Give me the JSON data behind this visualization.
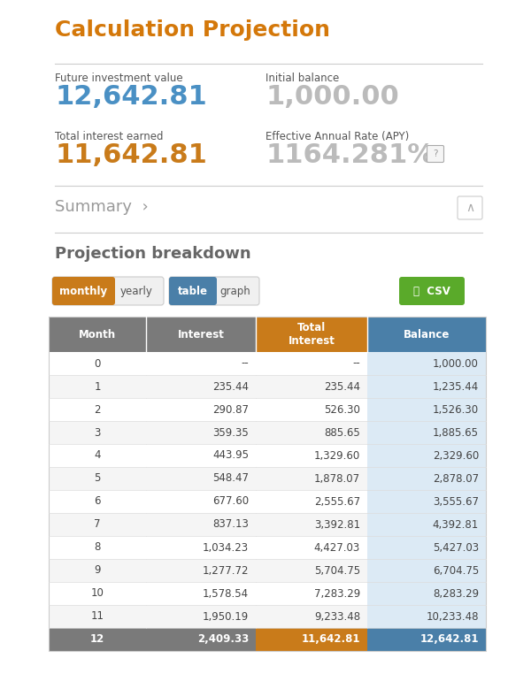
{
  "title": "Calculation Projection",
  "title_color": "#d4780a",
  "metric_label_color": "#555555",
  "metric_label_fontsize": 8.5,
  "metrics_left": [
    {
      "label": "Future investment value",
      "value": "12,642.81",
      "value_color": "#4a90c4"
    },
    {
      "label": "Total interest earned",
      "value": "11,642.81",
      "value_color": "#c97b1a"
    }
  ],
  "metrics_right": [
    {
      "label": "Initial balance",
      "value": "1,000.00",
      "value_color": "#bbbbbb"
    },
    {
      "label": "Effective Annual Rate (APY)",
      "value": "1164.281%",
      "value_color": "#bbbbbb"
    }
  ],
  "summary_text": "Summary  ›",
  "projection_text": "Projection breakdown",
  "buttons_group1": [
    {
      "label": "monthly",
      "bg": "#c97b1a",
      "fg": "#ffffff"
    },
    {
      "label": "yearly",
      "bg": "#f0f0f0",
      "fg": "#555555"
    }
  ],
  "buttons_group2": [
    {
      "label": "table",
      "bg": "#4a7fa8",
      "fg": "#ffffff"
    },
    {
      "label": "graph",
      "bg": "#f0f0f0",
      "fg": "#555555"
    }
  ],
  "csv_label": "⤓  CSV",
  "csv_bg": "#5aaa2a",
  "csv_fg": "#ffffff",
  "table_headers": [
    "Month",
    "Interest",
    "Total\nInterest",
    "Balance"
  ],
  "header_colors": [
    "#7a7a7a",
    "#7a7a7a",
    "#c97b1a",
    "#4a7fa8"
  ],
  "last_row_colors": [
    "#7a7a7a",
    "#7a7a7a",
    "#c97b1a",
    "#4a7fa8"
  ],
  "table_data": [
    [
      "0",
      "--",
      "--",
      "1,000.00"
    ],
    [
      "1",
      "235.44",
      "235.44",
      "1,235.44"
    ],
    [
      "2",
      "290.87",
      "526.30",
      "1,526.30"
    ],
    [
      "3",
      "359.35",
      "885.65",
      "1,885.65"
    ],
    [
      "4",
      "443.95",
      "1,329.60",
      "2,329.60"
    ],
    [
      "5",
      "548.47",
      "1,878.07",
      "2,878.07"
    ],
    [
      "6",
      "677.60",
      "2,555.67",
      "3,555.67"
    ],
    [
      "7",
      "837.13",
      "3,392.81",
      "4,392.81"
    ],
    [
      "8",
      "1,034.23",
      "4,427.03",
      "5,427.03"
    ],
    [
      "9",
      "1,277.72",
      "5,704.75",
      "6,704.75"
    ],
    [
      "10",
      "1,578.54",
      "7,283.29",
      "8,283.29"
    ],
    [
      "11",
      "1,950.19",
      "9,233.48",
      "10,233.48"
    ],
    [
      "12",
      "2,409.33",
      "11,642.81",
      "12,642.81"
    ]
  ],
  "row_bg_even": "#f5f5f5",
  "row_bg_odd": "#ffffff",
  "balance_col_bg": "#dceaf5",
  "separator_color": "#cccccc",
  "bg_color": "#ffffff"
}
